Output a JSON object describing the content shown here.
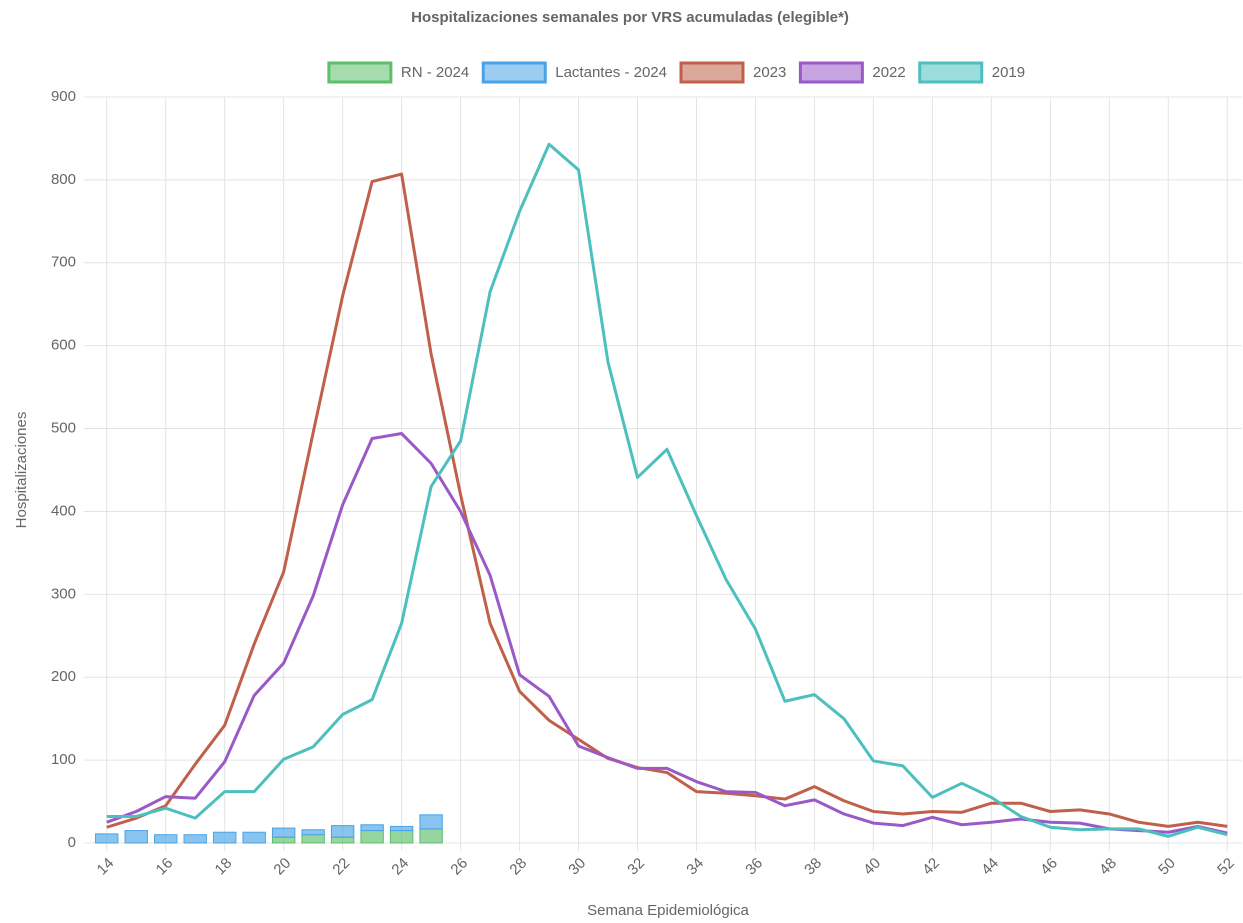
{
  "chart_data": {
    "type": "bar",
    "title": "Hospitalizaciones semanales por VRS acumuladas (elegible*)",
    "x_label": "Semana Epidemiológica",
    "y_label": "Hospitalizaciones",
    "categories": [
      14,
      null,
      16,
      null,
      18,
      null,
      20,
      null,
      22,
      null,
      24,
      null,
      26,
      null,
      28,
      null,
      30,
      null,
      32,
      null,
      34,
      null,
      36,
      null,
      38,
      null,
      40,
      null,
      42,
      null,
      44,
      null,
      46,
      null,
      48,
      null,
      50,
      null,
      52
    ],
    "stacked": true,
    "legend": "top",
    "grid": true,
    "ylim": [
      0,
      900
    ],
    "yticks": [
      0,
      100,
      200,
      300,
      400,
      500,
      600,
      700,
      800,
      900
    ],
    "series": [
      {
        "name": "RN - 2024",
        "type": "bar",
        "color": "#5cbf6a",
        "values": [
          null,
          null,
          null,
          null,
          null,
          null,
          7,
          10,
          7,
          15,
          15,
          17,
          null,
          null,
          null,
          null,
          null,
          null,
          null,
          null,
          null,
          null,
          null,
          null,
          null,
          null,
          null,
          null,
          null,
          null,
          null,
          null,
          null,
          null,
          null,
          null,
          null,
          null,
          null
        ]
      },
      {
        "name": "Lactantes - 2024",
        "type": "bar",
        "color": "#4aa3e6",
        "values": [
          11,
          15,
          10,
          10,
          13,
          13,
          11,
          6,
          14,
          7,
          5,
          17,
          null,
          null,
          null,
          null,
          null,
          null,
          null,
          null,
          null,
          null,
          null,
          null,
          null,
          null,
          null,
          null,
          null,
          null,
          null,
          null,
          null,
          null,
          null,
          null,
          null,
          null,
          null
        ]
      },
      {
        "name": "2023",
        "type": "line",
        "color": "#c0604a",
        "values": [
          19,
          30,
          45,
          95,
          142,
          240,
          327,
          495,
          660,
          798,
          807,
          590,
          420,
          265,
          183,
          148,
          125,
          102,
          91,
          85,
          62,
          60,
          57,
          53,
          68,
          51,
          38,
          35,
          38,
          37,
          48,
          48,
          38,
          40,
          35,
          25,
          20,
          25,
          20
        ]
      },
      {
        "name": "2022",
        "type": "line",
        "color": "#9b59c8",
        "values": [
          25,
          38,
          56,
          54,
          98,
          178,
          217,
          298,
          408,
          488,
          494,
          458,
          400,
          323,
          203,
          177,
          117,
          103,
          90,
          90,
          74,
          62,
          61,
          45,
          52,
          35,
          24,
          21,
          31,
          22,
          25,
          29,
          25,
          24,
          17,
          15,
          13,
          20,
          12
        ]
      },
      {
        "name": "2019",
        "type": "line",
        "color": "#4dbfbf",
        "values": [
          32,
          32,
          42,
          30,
          62,
          62,
          101,
          116,
          155,
          173,
          265,
          430,
          485,
          665,
          762,
          843,
          812,
          580,
          441,
          475,
          395,
          318,
          258,
          171,
          179,
          150,
          99,
          93,
          55,
          72,
          55,
          32,
          19,
          16,
          17,
          17,
          8,
          19,
          10
        ]
      }
    ]
  }
}
